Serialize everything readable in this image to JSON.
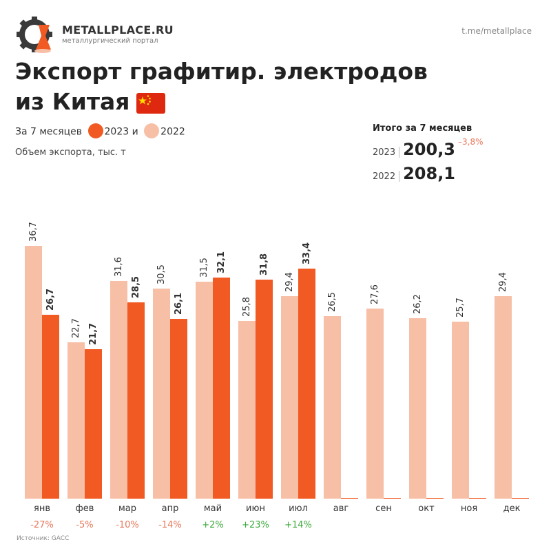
{
  "brand": {
    "name": "METALLPLACE.RU",
    "tagline": "металлургический портал",
    "logo_icon": "gear-flask-icon"
  },
  "channel": "t.me/metallplace",
  "title_line1": "Экспорт графитир. электродов",
  "title_line2": "из Китая",
  "flag_icon": "china-flag-icon",
  "legend": {
    "prefix": "За 7 месяцев",
    "label_2023": "2023 и",
    "label_2022": "2022"
  },
  "unit": "Объем экспорта, тыс. т",
  "totals": {
    "title": "Итого за 7 месяцев",
    "rows": [
      {
        "year": "2023",
        "value": "200,3",
        "change": "–3,8%"
      },
      {
        "year": "2022",
        "value": "208,1",
        "change": ""
      }
    ]
  },
  "colors": {
    "y2023": "#f15a22",
    "y2022": "#f7bfa6",
    "positive": "#3caa3c",
    "negative": "#e8775a"
  },
  "source": "Источник: GACC",
  "chart_data": {
    "type": "bar",
    "categories": [
      "янв",
      "фев",
      "мар",
      "апр",
      "май",
      "июн",
      "июл",
      "авг",
      "сен",
      "окт",
      "ноя",
      "дек"
    ],
    "series": [
      {
        "name": "2022",
        "values": [
          36.7,
          22.7,
          31.6,
          30.5,
          31.5,
          25.8,
          29.4,
          26.5,
          27.6,
          26.2,
          25.7,
          29.4
        ],
        "labels": [
          "36,7",
          "22,7",
          "31,6",
          "30,5",
          "31,5",
          "25,8",
          "29,4",
          "26,5",
          "27,6",
          "26,2",
          "25,7",
          "29,4"
        ]
      },
      {
        "name": "2023",
        "values": [
          26.7,
          21.7,
          28.5,
          26.1,
          32.1,
          31.8,
          33.4,
          null,
          null,
          null,
          null,
          null
        ],
        "labels": [
          "26,7",
          "21,7",
          "28,5",
          "26,1",
          "32,1",
          "31,8",
          "33,4",
          "",
          "",
          "",
          "",
          ""
        ]
      }
    ],
    "changes": [
      "-27%",
      "-5%",
      "-10%",
      "-14%",
      "+2%",
      "+23%",
      "+14%",
      "",
      "",
      "",
      "",
      ""
    ],
    "ylim": [
      0,
      37
    ],
    "grid": false,
    "legend": "top-left"
  }
}
